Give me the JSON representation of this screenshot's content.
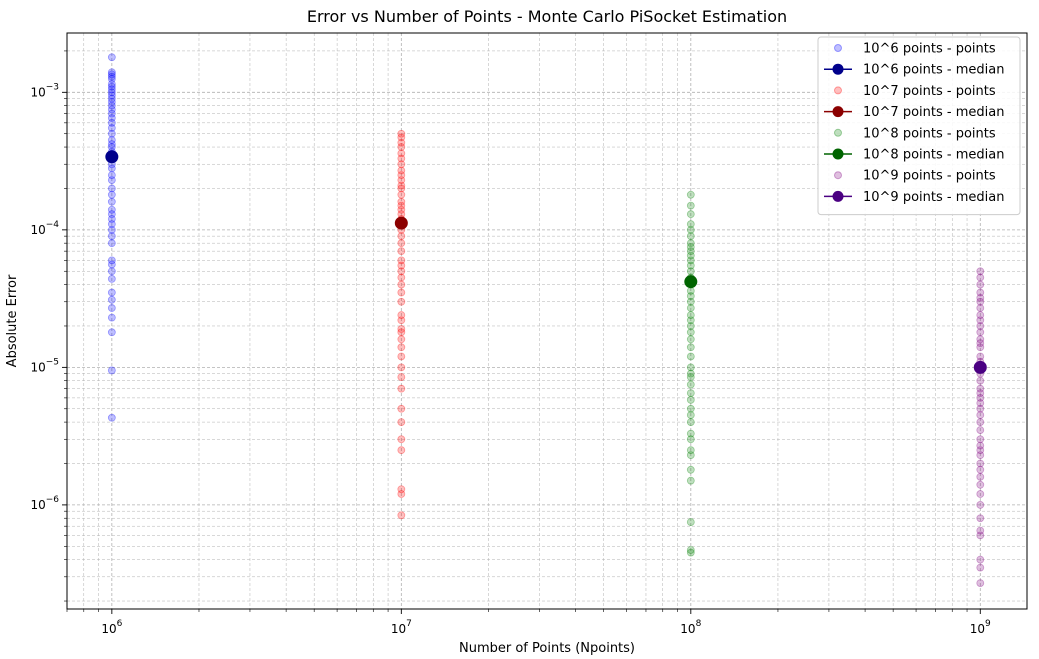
{
  "chart_data": {
    "type": "scatter",
    "title": "Error vs Number of Points - Monte Carlo PiSocket Estimation",
    "xlabel": "Number of Points (Npoints)",
    "ylabel": "Absolute Error",
    "xscale": "log",
    "yscale": "log",
    "xlim": [
      700000,
      1450000000
    ],
    "ylim": [
      1.75e-07,
      0.0027
    ],
    "grid": true,
    "legend_position": "top-right",
    "x_ticks": [
      {
        "base": "10",
        "exp": "6",
        "value": 1000000
      },
      {
        "base": "10",
        "exp": "7",
        "value": 10000000
      },
      {
        "base": "10",
        "exp": "8",
        "value": 100000000
      },
      {
        "base": "10",
        "exp": "9",
        "value": 1000000000
      }
    ],
    "y_ticks": [
      {
        "base": "10",
        "exp": "−6",
        "value": 1e-06
      },
      {
        "base": "10",
        "exp": "−5",
        "value": 1e-05
      },
      {
        "base": "10",
        "exp": "−4",
        "value": 0.0001
      },
      {
        "base": "10",
        "exp": "−3",
        "value": 0.001
      }
    ],
    "series": [
      {
        "name": "10^6 points - points",
        "kind": "points",
        "x": 1000000,
        "color": "#0000ff",
        "values": [
          0.0018,
          0.0014,
          0.00135,
          0.0013,
          0.00125,
          0.00115,
          0.0011,
          0.00105,
          0.001,
          0.00095,
          0.0009,
          0.00085,
          0.0008,
          0.00075,
          0.0007,
          0.00065,
          0.0006,
          0.00055,
          0.0005,
          0.00045,
          0.00042,
          0.0004,
          0.00037,
          0.00035,
          0.00033,
          0.0003,
          0.00028,
          0.00025,
          0.00023,
          0.0002,
          0.00018,
          0.00016,
          0.00014,
          0.00013,
          0.00012,
          0.00011,
          0.0001,
          9e-05,
          8e-05,
          6e-05,
          5.6e-05,
          5e-05,
          4.4e-05,
          3.5e-05,
          3.1e-05,
          2.7e-05,
          2.3e-05,
          1.8e-05,
          9.5e-06,
          4.3e-06
        ]
      },
      {
        "name": "10^6 points - median",
        "kind": "median",
        "x": 1000000,
        "color": "#00008b",
        "value": 0.00034
      },
      {
        "name": "10^7 points - points",
        "kind": "points",
        "x": 10000000,
        "color": "#ff0000",
        "values": [
          0.0005,
          0.00047,
          0.00043,
          0.0004,
          0.00036,
          0.00033,
          0.0003,
          0.00027,
          0.00025,
          0.00023,
          0.00021,
          0.0002,
          0.00018,
          0.00016,
          0.00015,
          0.00014,
          0.00013,
          0.00012,
          0.00011,
          0.0001,
          9e-05,
          8e-05,
          7e-05,
          6e-05,
          5.5e-05,
          5e-05,
          4.5e-05,
          4e-05,
          3.5e-05,
          3e-05,
          2.4e-05,
          2.2e-05,
          1.9e-05,
          1.8e-05,
          1.6e-05,
          1.4e-05,
          1.2e-05,
          1e-05,
          8.5e-06,
          7e-06,
          5e-06,
          4e-06,
          3e-06,
          2.5e-06,
          1.3e-06,
          1.2e-06,
          8.4e-07
        ]
      },
      {
        "name": "10^7 points - median",
        "kind": "median",
        "x": 10000000,
        "color": "#8b0000",
        "value": 0.000112
      },
      {
        "name": "10^8 points - points",
        "kind": "points",
        "x": 100000000,
        "color": "#008000",
        "values": [
          0.00018,
          0.00015,
          0.00013,
          0.00011,
          0.0001,
          9e-05,
          8e-05,
          7.5e-05,
          7e-05,
          6.5e-05,
          6e-05,
          5.5e-05,
          5e-05,
          4.5e-05,
          4e-05,
          3.6e-05,
          3.3e-05,
          3e-05,
          2.7e-05,
          2.4e-05,
          2.2e-05,
          2e-05,
          1.8e-05,
          1.6e-05,
          1.4e-05,
          1.2e-05,
          1e-05,
          9e-06,
          8.5e-06,
          7.5e-06,
          6.5e-06,
          5.8e-06,
          5e-06,
          4.5e-06,
          4e-06,
          3.3e-06,
          3e-06,
          2.5e-06,
          2.3e-06,
          1.8e-06,
          1.5e-06,
          7.5e-07,
          4.7e-07,
          4.5e-07
        ]
      },
      {
        "name": "10^8 points - median",
        "kind": "median",
        "x": 100000000,
        "color": "#006400",
        "value": 4.2e-05
      },
      {
        "name": "10^9 points - points",
        "kind": "points",
        "x": 1000000000,
        "color": "#800080",
        "values": [
          5e-05,
          4.5e-05,
          4e-05,
          3.5e-05,
          3.2e-05,
          3e-05,
          2.7e-05,
          2.4e-05,
          2.2e-05,
          2e-05,
          1.8e-05,
          1.6e-05,
          1.5e-05,
          1.4e-05,
          1.2e-05,
          1.1e-05,
          1e-05,
          9e-06,
          8e-06,
          7e-06,
          6.5e-06,
          6e-06,
          5.5e-06,
          5e-06,
          4.5e-06,
          4e-06,
          3.5e-06,
          3e-06,
          2.7e-06,
          2.5e-06,
          2.3e-06,
          2e-06,
          1.8e-06,
          1.6e-06,
          1.4e-06,
          1.2e-06,
          1e-06,
          8e-07,
          6.5e-07,
          6e-07,
          4e-07,
          3.5e-07,
          2.7e-07
        ]
      },
      {
        "name": "10^9 points - median",
        "kind": "median",
        "x": 1000000000,
        "color": "#4b0082",
        "value": 1e-05
      }
    ]
  }
}
